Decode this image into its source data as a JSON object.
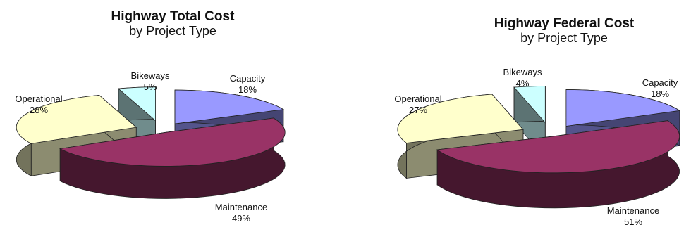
{
  "chart_data": [
    {
      "type": "pie",
      "title": "Highway Total Cost",
      "subtitle": "by Project Type",
      "slices": [
        {
          "label": "Capacity",
          "value": 18,
          "value_label": "18%",
          "color": "#9999ff"
        },
        {
          "label": "Maintenance",
          "value": 49,
          "value_label": "49%",
          "color": "#993366"
        },
        {
          "label": "Operational",
          "value": 28,
          "value_label": "28%",
          "color": "#ffffcc"
        },
        {
          "label": "Bikeways",
          "value": 5,
          "value_label": "5%",
          "color": "#ccffff"
        }
      ]
    },
    {
      "type": "pie",
      "title": "Highway Federal Cost",
      "subtitle": "by Project Type",
      "slices": [
        {
          "label": "Capacity",
          "value": 18,
          "value_label": "18%",
          "color": "#9999ff"
        },
        {
          "label": "Maintenance",
          "value": 51,
          "value_label": "51%",
          "color": "#993366"
        },
        {
          "label": "Operational",
          "value": 27,
          "value_label": "27%",
          "color": "#ffffcc"
        },
        {
          "label": "Bikeways",
          "value": 4,
          "value_label": "4%",
          "color": "#ccffff"
        }
      ]
    }
  ]
}
